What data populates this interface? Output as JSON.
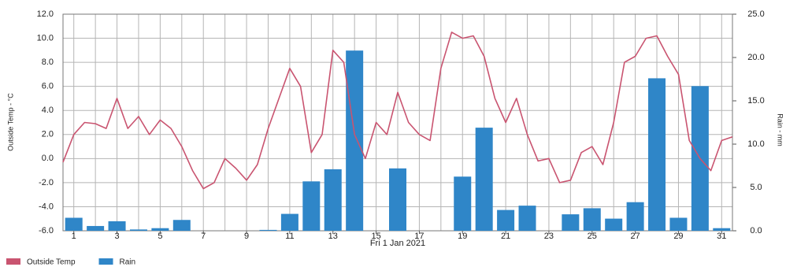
{
  "chart_data": {
    "type": "combo",
    "xlabel": "Fri 1 Jan 2021",
    "ylabel": "Outside Temp - °C",
    "y2label": "Rain - mm",
    "xlim": [
      0.5,
      31.5
    ],
    "xticks": [
      1,
      3,
      5,
      7,
      9,
      11,
      13,
      15,
      17,
      19,
      21,
      23,
      25,
      27,
      29,
      31
    ],
    "ylim": [
      -6,
      12
    ],
    "yticks": [
      {
        "value": -6,
        "label": "-6.0"
      },
      {
        "value": -4,
        "label": "-4.0"
      },
      {
        "value": -2,
        "label": "-2.0"
      },
      {
        "value": 0,
        "label": "0.0"
      },
      {
        "value": 2,
        "label": "2.0"
      },
      {
        "value": 4,
        "label": "4.0"
      },
      {
        "value": 6,
        "label": "6.0"
      },
      {
        "value": 8,
        "label": "8.0"
      },
      {
        "value": 10,
        "label": "10.0"
      },
      {
        "value": 12,
        "label": "12.0"
      }
    ],
    "y2lim": [
      0,
      25
    ],
    "y2ticks": [
      {
        "value": 0,
        "label": "0.0"
      },
      {
        "value": 5,
        "label": "5.0"
      },
      {
        "value": 10,
        "label": "10.0"
      },
      {
        "value": 15,
        "label": "15.0"
      },
      {
        "value": 20,
        "label": "20.0"
      },
      {
        "value": 25,
        "label": "25.0"
      }
    ],
    "grid": true,
    "legend": "bottom-left",
    "x": [
      1,
      2,
      3,
      4,
      5,
      6,
      7,
      8,
      9,
      10,
      11,
      12,
      13,
      14,
      15,
      16,
      17,
      18,
      19,
      20,
      21,
      22,
      23,
      24,
      25,
      26,
      27,
      28,
      29,
      30,
      31
    ],
    "series": [
      {
        "name": "Outside Temp",
        "type": "line",
        "color": "#c95470",
        "x": [
          0.5,
          1,
          1.5,
          2,
          2.5,
          3,
          3.5,
          4,
          4.5,
          5,
          5.5,
          6,
          6.5,
          7,
          7.5,
          8,
          8.5,
          9,
          9.5,
          10,
          10.5,
          11,
          11.5,
          12,
          12.5,
          13,
          13.5,
          14,
          14.5,
          15,
          15.5,
          16,
          16.5,
          17,
          17.5,
          18,
          18.5,
          19,
          19.5,
          20,
          20.5,
          21,
          21.5,
          22,
          22.5,
          23,
          23.5,
          24,
          24.5,
          25,
          25.5,
          26,
          26.5,
          27,
          27.5,
          28,
          28.5,
          29,
          29.5,
          30,
          30.5,
          31,
          31.5
        ],
        "values": [
          -0.3,
          2.0,
          3.0,
          2.9,
          2.5,
          5.0,
          2.5,
          3.5,
          2.0,
          3.2,
          2.5,
          1.0,
          -1.0,
          -2.5,
          -2.0,
          0.0,
          -0.8,
          -1.8,
          -0.5,
          2.5,
          5.0,
          7.5,
          6.0,
          0.5,
          2.0,
          9.0,
          8.0,
          2.0,
          0.0,
          3.0,
          2.0,
          5.5,
          3.0,
          2.0,
          1.5,
          7.5,
          10.5,
          10.0,
          10.2,
          8.5,
          5.0,
          3.0,
          5.0,
          2.0,
          -0.2,
          0.0,
          -2.0,
          -1.8,
          0.5,
          1.0,
          -0.5,
          3.0,
          8.0,
          8.5,
          10.0,
          10.2,
          8.5,
          7.0,
          1.5,
          0.0,
          -1.0,
          1.5,
          1.8
        ]
      },
      {
        "name": "Rain",
        "type": "bar",
        "axis": "y2",
        "color": "#2f86c8",
        "values": [
          1.5,
          0.55,
          1.1,
          0.15,
          0.3,
          1.25,
          0,
          0,
          0,
          0.1,
          1.95,
          5.7,
          7.1,
          20.8,
          0,
          7.2,
          0,
          0,
          6.25,
          11.9,
          2.4,
          2.9,
          0,
          1.9,
          2.6,
          1.4,
          3.3,
          17.6,
          1.5,
          16.7,
          0.3
        ]
      }
    ]
  }
}
